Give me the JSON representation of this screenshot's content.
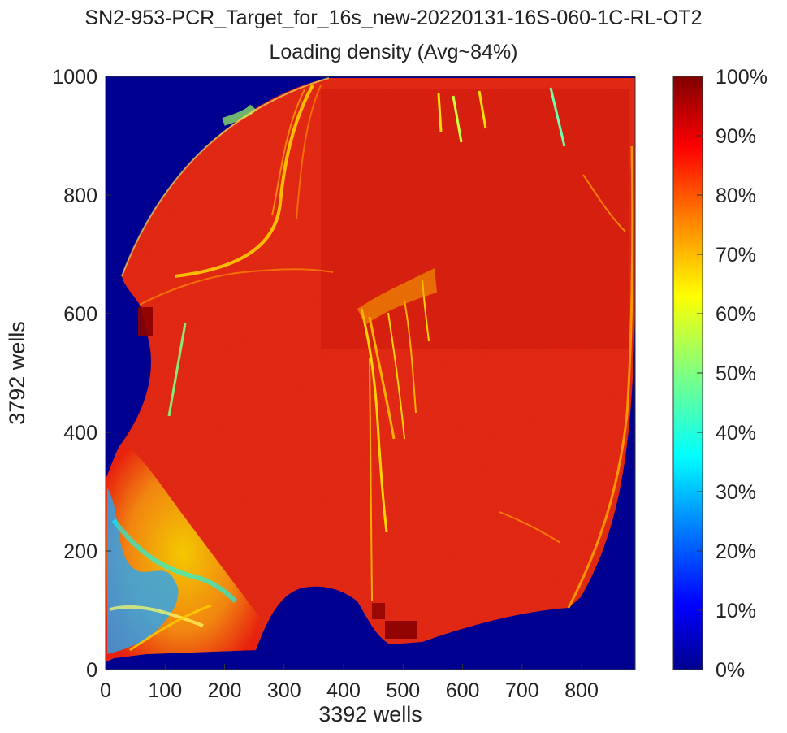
{
  "chart_data": {
    "type": "heatmap",
    "title": "SN2-953-PCR_Target_for_16s_new-20220131-16S-060-1C-RL-OT2",
    "subtitle": "Loading density (Avg~84%)",
    "xlabel": "3392 wells",
    "ylabel": "3792 wells",
    "xlim": [
      0,
      890
    ],
    "ylim": [
      0,
      1000
    ],
    "xticks": [
      0,
      100,
      200,
      300,
      400,
      500,
      600,
      700,
      800
    ],
    "yticks": [
      0,
      200,
      400,
      600,
      800,
      1000
    ],
    "colorbar": {
      "range_percent": [
        0,
        100
      ],
      "ticks": [
        "0%",
        "10%",
        "20%",
        "30%",
        "40%",
        "50%",
        "60%",
        "70%",
        "80%",
        "90%",
        "100%"
      ],
      "colormap": [
        "#00008f",
        "#0000ff",
        "#0080ff",
        "#00ffff",
        "#80ff80",
        "#ffff00",
        "#ff8000",
        "#ff0000",
        "#800000"
      ]
    },
    "average_density_percent": 84,
    "background_color": "#000090",
    "dominant_fill_color": "#e8210e"
  }
}
